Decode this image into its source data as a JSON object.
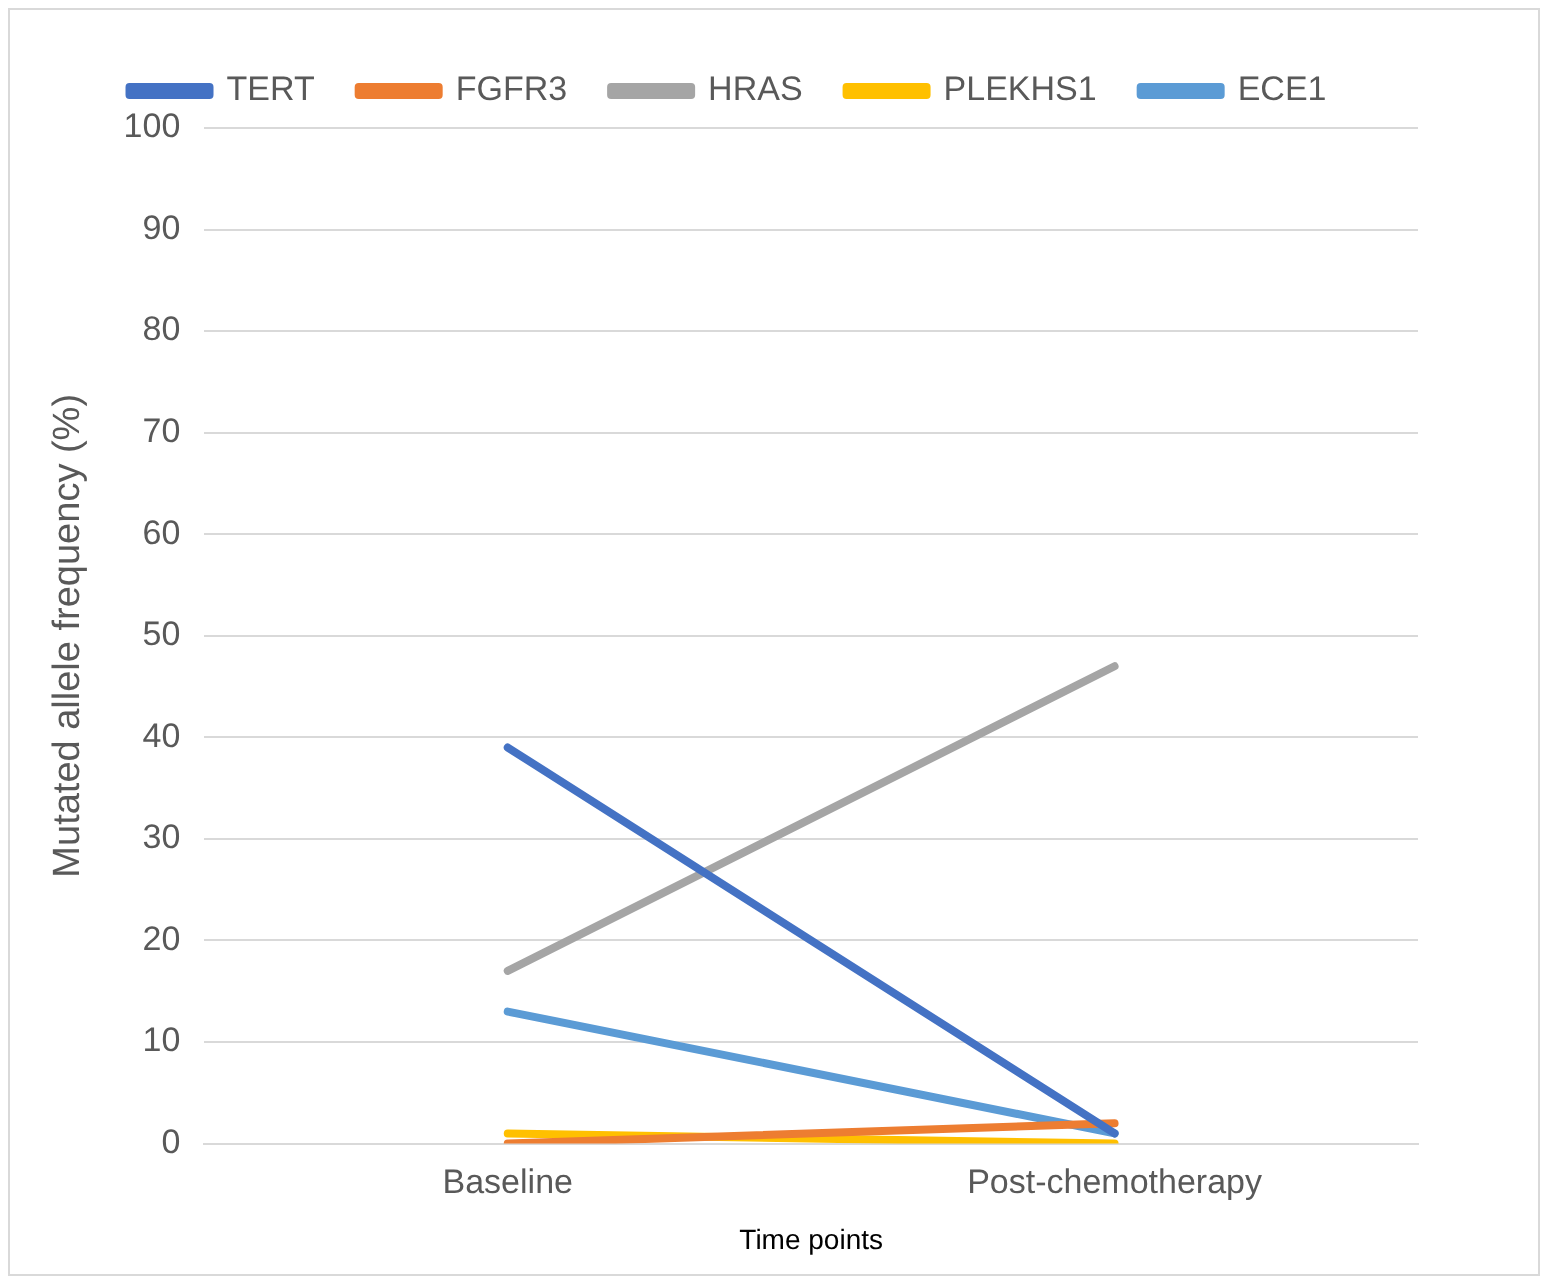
{
  "chart_data": {
    "type": "line",
    "xlabel": "Time points",
    "ylabel": "Mutated allele frequency (%)",
    "categories": [
      "Baseline",
      "Post-chemotherapy"
    ],
    "series": [
      {
        "name": "TERT",
        "color": "#4472c4",
        "values": [
          39,
          1
        ]
      },
      {
        "name": "FGFR3",
        "color": "#ed7d31",
        "values": [
          0,
          2
        ]
      },
      {
        "name": "HRAS",
        "color": "#a5a5a5",
        "values": [
          17,
          47
        ]
      },
      {
        "name": "PLEKHS1",
        "color": "#ffc000",
        "values": [
          1,
          0
        ]
      },
      {
        "name": "ECE1",
        "color": "#5b9bd5",
        "values": [
          13,
          1
        ]
      }
    ],
    "ylim": [
      0,
      100
    ],
    "yticks": [
      0,
      10,
      20,
      30,
      40,
      50,
      60,
      70,
      80,
      90,
      100
    ],
    "grid": "y",
    "legend": "top",
    "marker": "none",
    "line_style": "solid"
  }
}
